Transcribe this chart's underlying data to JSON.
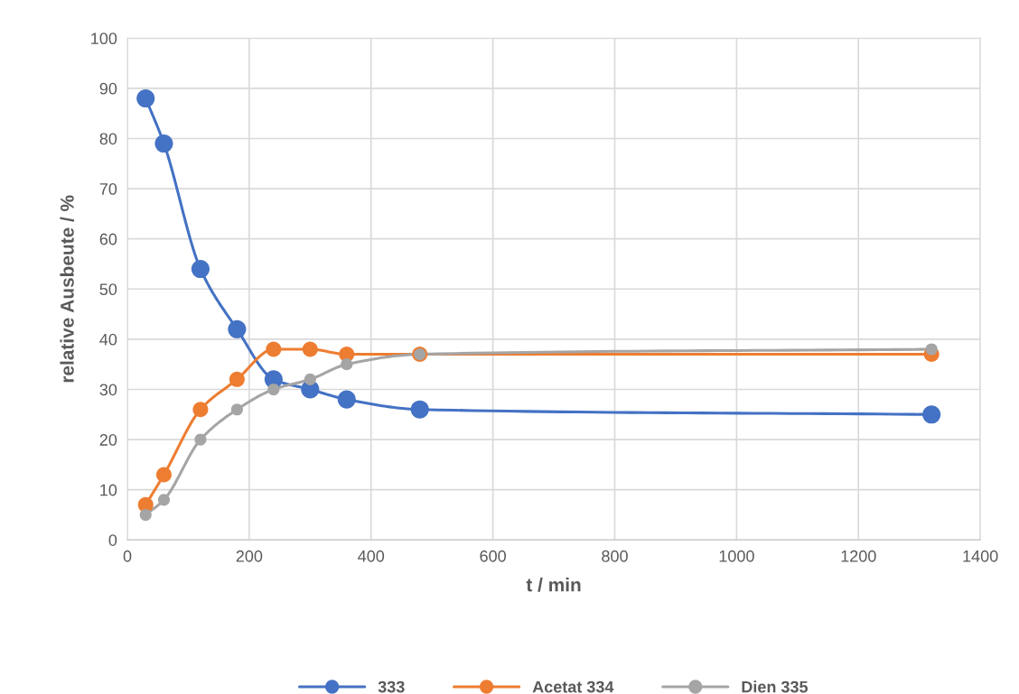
{
  "chart_data": {
    "type": "line",
    "xlabel": "t / min",
    "ylabel": "relative Ausbeute / %",
    "x": [
      30,
      60,
      120,
      180,
      240,
      300,
      360,
      480,
      1320
    ],
    "series": [
      {
        "name": "333",
        "color": "#4472c4",
        "values": [
          88,
          79,
          54,
          42,
          32,
          30,
          28,
          26,
          25
        ]
      },
      {
        "name": "Acetat 334",
        "color": "#ed7d31",
        "values": [
          7,
          13,
          26,
          32,
          38,
          38,
          37,
          37,
          37
        ]
      },
      {
        "name": "Dien 335",
        "color": "#a5a5a5",
        "values": [
          5,
          8,
          20,
          26,
          30,
          32,
          35,
          37,
          38
        ]
      }
    ],
    "xlim": [
      0,
      1400
    ],
    "xticks": [
      0,
      200,
      400,
      600,
      800,
      1000,
      1200,
      1400
    ],
    "ylim": [
      0,
      100
    ],
    "yticks": [
      0,
      10,
      20,
      30,
      40,
      50,
      60,
      70,
      80,
      90,
      100
    ],
    "grid": true,
    "legend": "bottom",
    "marker": "circle",
    "line_style": "solid"
  }
}
